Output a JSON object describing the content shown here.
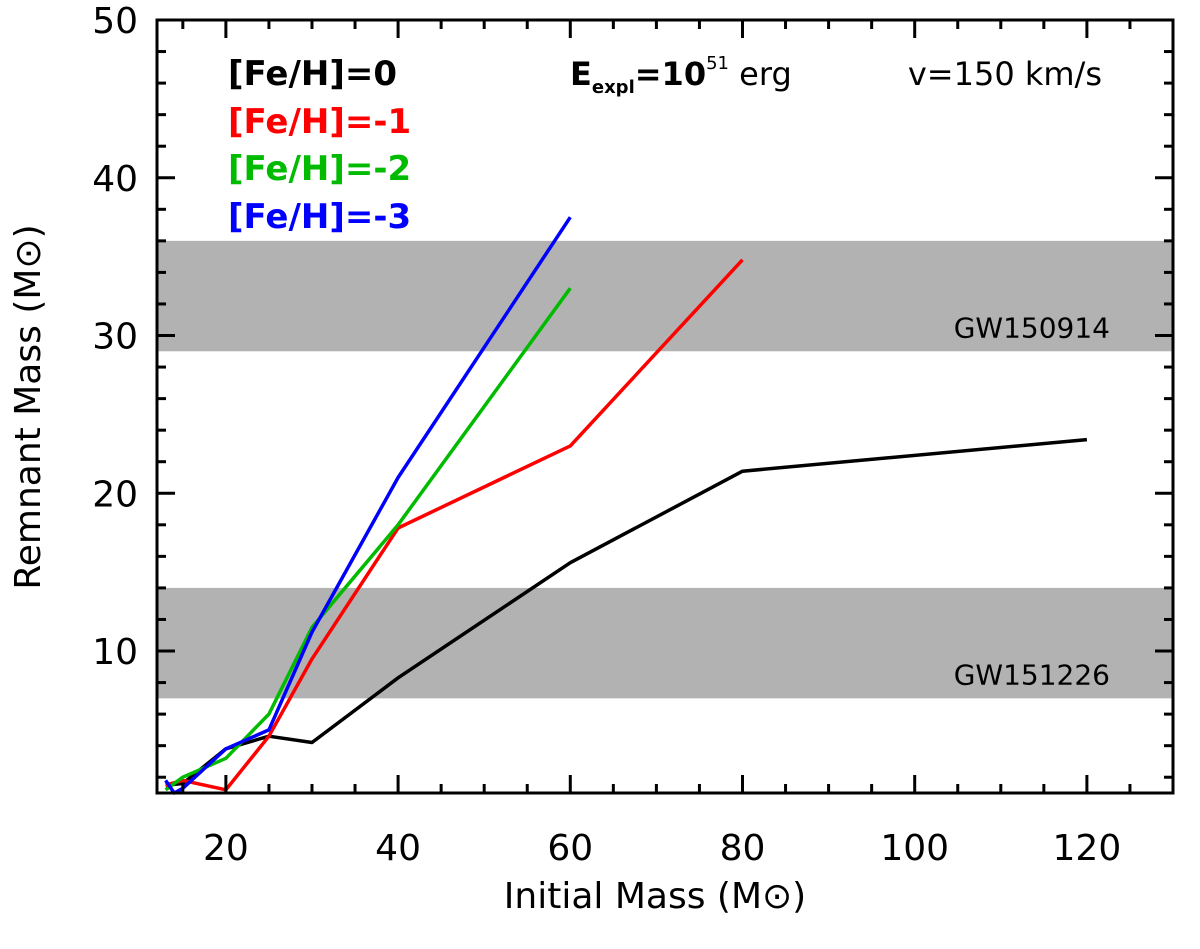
{
  "chart_data": {
    "type": "line",
    "xlabel": "Initial Mass (M⊙)",
    "ylabel": "Remnant Mass (M⊙)",
    "xlim": [
      12,
      130
    ],
    "ylim": [
      1,
      50
    ],
    "xticks": [
      20,
      40,
      60,
      80,
      100,
      120
    ],
    "yticks": [
      10,
      20,
      30,
      40,
      50
    ],
    "grid": false,
    "legend_placement": "top-left",
    "annotation": {
      "energy_prefix": "E",
      "energy_subscript": "expl",
      "energy_mid": "=10",
      "energy_exponent": "51",
      "energy_suffix": " erg",
      "velocity": "v=150 km/s"
    },
    "bands": [
      {
        "label": "GW150914",
        "y_range": [
          29,
          36
        ],
        "color": "#b2b2b2"
      },
      {
        "label": "GW151226",
        "y_range": [
          7,
          14
        ],
        "color": "#b2b2b2"
      }
    ],
    "series": [
      {
        "name_prefix": "[Fe/H]=",
        "name_value": "0",
        "color": "#000000",
        "x": [
          13,
          15,
          20,
          25,
          30,
          40,
          60,
          80,
          120
        ],
        "y": [
          1.5,
          1.6,
          3.8,
          4.6,
          4.2,
          8.3,
          15.6,
          21.4,
          23.4
        ]
      },
      {
        "name_prefix": "[Fe/H]=",
        "name_value": "-1",
        "color": "#ff0000",
        "x": [
          13,
          15,
          20,
          25,
          30,
          40,
          60,
          80
        ],
        "y": [
          1.5,
          1.8,
          1.2,
          4.6,
          9.5,
          17.8,
          23.0,
          34.8
        ]
      },
      {
        "name_prefix": "[Fe/H]=",
        "name_value": "-2",
        "color": "#00bb00",
        "x": [
          13,
          15,
          20,
          25,
          30,
          40,
          60
        ],
        "y": [
          1.2,
          2.0,
          3.2,
          6.0,
          11.5,
          18.0,
          33.0
        ]
      },
      {
        "name_prefix": "[Fe/H]=",
        "name_value": "-3",
        "color": "#0000ff",
        "x": [
          13,
          14,
          15,
          20,
          25,
          30,
          40,
          60
        ],
        "y": [
          1.8,
          1.0,
          1.3,
          3.8,
          5.0,
          11.2,
          21.0,
          37.5
        ]
      }
    ]
  }
}
